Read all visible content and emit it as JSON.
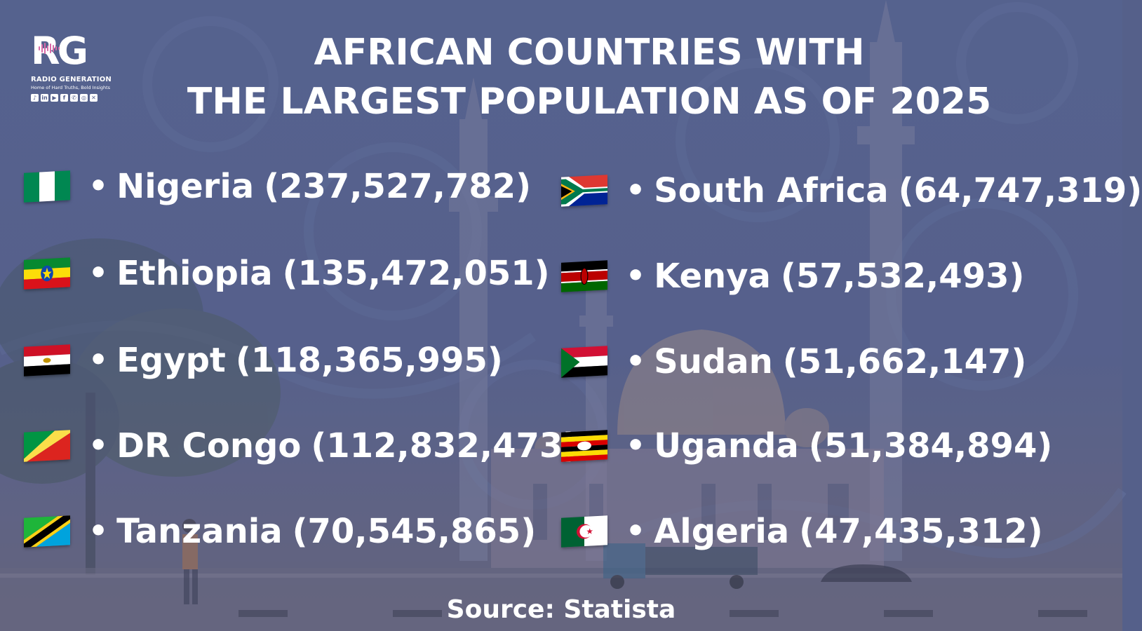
{
  "logo": {
    "mark_r": "R",
    "mark_g": "G",
    "name": "RADIO GENERATION",
    "tagline": "Home of Hard Truths, Bold Insights",
    "socials": [
      "tiktok-icon",
      "linkedin-icon",
      "youtube-icon",
      "facebook-icon",
      "whatsapp-icon",
      "instagram-icon",
      "x-icon"
    ]
  },
  "title": {
    "line1": "AFRICAN COUNTRIES WITH",
    "line2": "THE LARGEST POPULATION AS OF 2025"
  },
  "bullet": "•",
  "countries": [
    {
      "name": "Nigeria",
      "population": "(237,527,782)",
      "flag": "nigeria-flag-icon"
    },
    {
      "name": "Ethiopia",
      "population": "(135,472,051)",
      "flag": "ethiopia-flag-icon"
    },
    {
      "name": "Egypt",
      "population": "(118,365,995)",
      "flag": "egypt-flag-icon"
    },
    {
      "name": "DR Congo",
      "population": "(112,832,473)",
      "flag": "congo-flag-icon"
    },
    {
      "name": "Tanzania",
      "population": "(70,545,865)",
      "flag": "tanzania-flag-icon"
    },
    {
      "name": "South Africa",
      "population": "(64,747,319)",
      "flag": "south-africa-flag-icon"
    },
    {
      "name": "Kenya",
      "population": "(57,532,493)",
      "flag": "kenya-flag-icon"
    },
    {
      "name": "Sudan",
      "population": "(51,662,147)",
      "flag": "sudan-flag-icon"
    },
    {
      "name": "Uganda",
      "population": "(51,384,894)",
      "flag": "uganda-flag-icon"
    },
    {
      "name": "Algeria",
      "population": "(47,435,312)",
      "flag": "algeria-flag-icon"
    }
  ],
  "source": "Source: Statista",
  "colors": {
    "background": "#5c6894",
    "text": "#ffffff"
  }
}
